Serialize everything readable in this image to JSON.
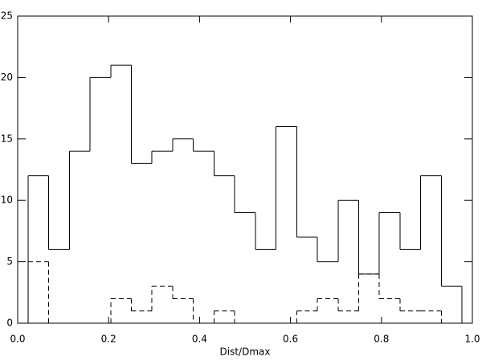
{
  "chart_data": {
    "type": "histogram",
    "xlabel": "Dist/Dmax",
    "bins": [
      0.023,
      0.068,
      0.114,
      0.159,
      0.205,
      0.25,
      0.295,
      0.341,
      0.386,
      0.432,
      0.477,
      0.523,
      0.568,
      0.614,
      0.659,
      0.705,
      0.75,
      0.795,
      0.841,
      0.886,
      0.932,
      0.977
    ],
    "series": [
      {
        "color": "#000000",
        "dash": "solid",
        "values": [
          12,
          6,
          14,
          20,
          21,
          13,
          14,
          15,
          14,
          12,
          9,
          6,
          16,
          7,
          5,
          10,
          4,
          9,
          6,
          12,
          3
        ]
      },
      {
        "color": "#000000",
        "dash": "dashed",
        "values": [
          5,
          0,
          0,
          0,
          2,
          1,
          3,
          2,
          0,
          1,
          0,
          0,
          0,
          1,
          2,
          1,
          4,
          2,
          1,
          1,
          0
        ]
      }
    ],
    "xlim": [
      0,
      1
    ],
    "ylim": [
      0,
      25
    ],
    "xticks": [
      {
        "value": 0,
        "label": "0.0"
      },
      0.2,
      0.4,
      0.6,
      0.8,
      {
        "value": 1,
        "label": "1.0"
      }
    ],
    "yticks": [
      0,
      5,
      10,
      15,
      20,
      25
    ]
  }
}
